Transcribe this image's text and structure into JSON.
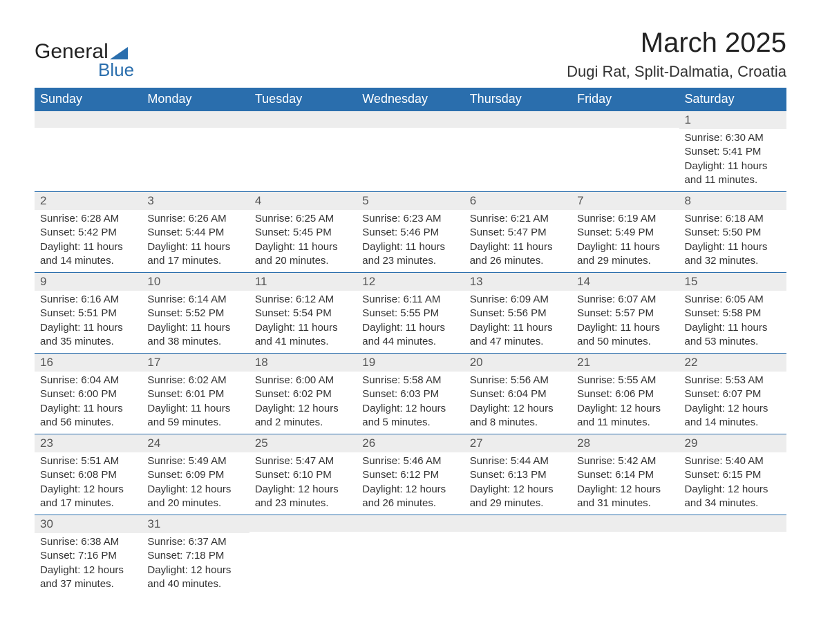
{
  "brand": {
    "name_part1": "General",
    "name_part2": "Blue"
  },
  "title": "March 2025",
  "location": "Dugi Rat, Split-Dalmatia, Croatia",
  "colors": {
    "header_bg": "#2a6ead",
    "header_text": "#ffffff",
    "daynum_bg": "#ededed",
    "border": "#2a6ead",
    "text": "#333333",
    "background": "#ffffff"
  },
  "typography": {
    "title_fontsize": 40,
    "location_fontsize": 22,
    "th_fontsize": 18,
    "cell_fontsize": 15
  },
  "day_names": [
    "Sunday",
    "Monday",
    "Tuesday",
    "Wednesday",
    "Thursday",
    "Friday",
    "Saturday"
  ],
  "labels": {
    "sunrise": "Sunrise:",
    "sunset": "Sunset:",
    "daylight": "Daylight:"
  },
  "weeks": [
    [
      null,
      null,
      null,
      null,
      null,
      null,
      {
        "n": "1",
        "sunrise": "6:30 AM",
        "sunset": "5:41 PM",
        "daylight": "11 hours and 11 minutes."
      }
    ],
    [
      {
        "n": "2",
        "sunrise": "6:28 AM",
        "sunset": "5:42 PM",
        "daylight": "11 hours and 14 minutes."
      },
      {
        "n": "3",
        "sunrise": "6:26 AM",
        "sunset": "5:44 PM",
        "daylight": "11 hours and 17 minutes."
      },
      {
        "n": "4",
        "sunrise": "6:25 AM",
        "sunset": "5:45 PM",
        "daylight": "11 hours and 20 minutes."
      },
      {
        "n": "5",
        "sunrise": "6:23 AM",
        "sunset": "5:46 PM",
        "daylight": "11 hours and 23 minutes."
      },
      {
        "n": "6",
        "sunrise": "6:21 AM",
        "sunset": "5:47 PM",
        "daylight": "11 hours and 26 minutes."
      },
      {
        "n": "7",
        "sunrise": "6:19 AM",
        "sunset": "5:49 PM",
        "daylight": "11 hours and 29 minutes."
      },
      {
        "n": "8",
        "sunrise": "6:18 AM",
        "sunset": "5:50 PM",
        "daylight": "11 hours and 32 minutes."
      }
    ],
    [
      {
        "n": "9",
        "sunrise": "6:16 AM",
        "sunset": "5:51 PM",
        "daylight": "11 hours and 35 minutes."
      },
      {
        "n": "10",
        "sunrise": "6:14 AM",
        "sunset": "5:52 PM",
        "daylight": "11 hours and 38 minutes."
      },
      {
        "n": "11",
        "sunrise": "6:12 AM",
        "sunset": "5:54 PM",
        "daylight": "11 hours and 41 minutes."
      },
      {
        "n": "12",
        "sunrise": "6:11 AM",
        "sunset": "5:55 PM",
        "daylight": "11 hours and 44 minutes."
      },
      {
        "n": "13",
        "sunrise": "6:09 AM",
        "sunset": "5:56 PM",
        "daylight": "11 hours and 47 minutes."
      },
      {
        "n": "14",
        "sunrise": "6:07 AM",
        "sunset": "5:57 PM",
        "daylight": "11 hours and 50 minutes."
      },
      {
        "n": "15",
        "sunrise": "6:05 AM",
        "sunset": "5:58 PM",
        "daylight": "11 hours and 53 minutes."
      }
    ],
    [
      {
        "n": "16",
        "sunrise": "6:04 AM",
        "sunset": "6:00 PM",
        "daylight": "11 hours and 56 minutes."
      },
      {
        "n": "17",
        "sunrise": "6:02 AM",
        "sunset": "6:01 PM",
        "daylight": "11 hours and 59 minutes."
      },
      {
        "n": "18",
        "sunrise": "6:00 AM",
        "sunset": "6:02 PM",
        "daylight": "12 hours and 2 minutes."
      },
      {
        "n": "19",
        "sunrise": "5:58 AM",
        "sunset": "6:03 PM",
        "daylight": "12 hours and 5 minutes."
      },
      {
        "n": "20",
        "sunrise": "5:56 AM",
        "sunset": "6:04 PM",
        "daylight": "12 hours and 8 minutes."
      },
      {
        "n": "21",
        "sunrise": "5:55 AM",
        "sunset": "6:06 PM",
        "daylight": "12 hours and 11 minutes."
      },
      {
        "n": "22",
        "sunrise": "5:53 AM",
        "sunset": "6:07 PM",
        "daylight": "12 hours and 14 minutes."
      }
    ],
    [
      {
        "n": "23",
        "sunrise": "5:51 AM",
        "sunset": "6:08 PM",
        "daylight": "12 hours and 17 minutes."
      },
      {
        "n": "24",
        "sunrise": "5:49 AM",
        "sunset": "6:09 PM",
        "daylight": "12 hours and 20 minutes."
      },
      {
        "n": "25",
        "sunrise": "5:47 AM",
        "sunset": "6:10 PM",
        "daylight": "12 hours and 23 minutes."
      },
      {
        "n": "26",
        "sunrise": "5:46 AM",
        "sunset": "6:12 PM",
        "daylight": "12 hours and 26 minutes."
      },
      {
        "n": "27",
        "sunrise": "5:44 AM",
        "sunset": "6:13 PM",
        "daylight": "12 hours and 29 minutes."
      },
      {
        "n": "28",
        "sunrise": "5:42 AM",
        "sunset": "6:14 PM",
        "daylight": "12 hours and 31 minutes."
      },
      {
        "n": "29",
        "sunrise": "5:40 AM",
        "sunset": "6:15 PM",
        "daylight": "12 hours and 34 minutes."
      }
    ],
    [
      {
        "n": "30",
        "sunrise": "6:38 AM",
        "sunset": "7:16 PM",
        "daylight": "12 hours and 37 minutes."
      },
      {
        "n": "31",
        "sunrise": "6:37 AM",
        "sunset": "7:18 PM",
        "daylight": "12 hours and 40 minutes."
      },
      null,
      null,
      null,
      null,
      null
    ]
  ]
}
